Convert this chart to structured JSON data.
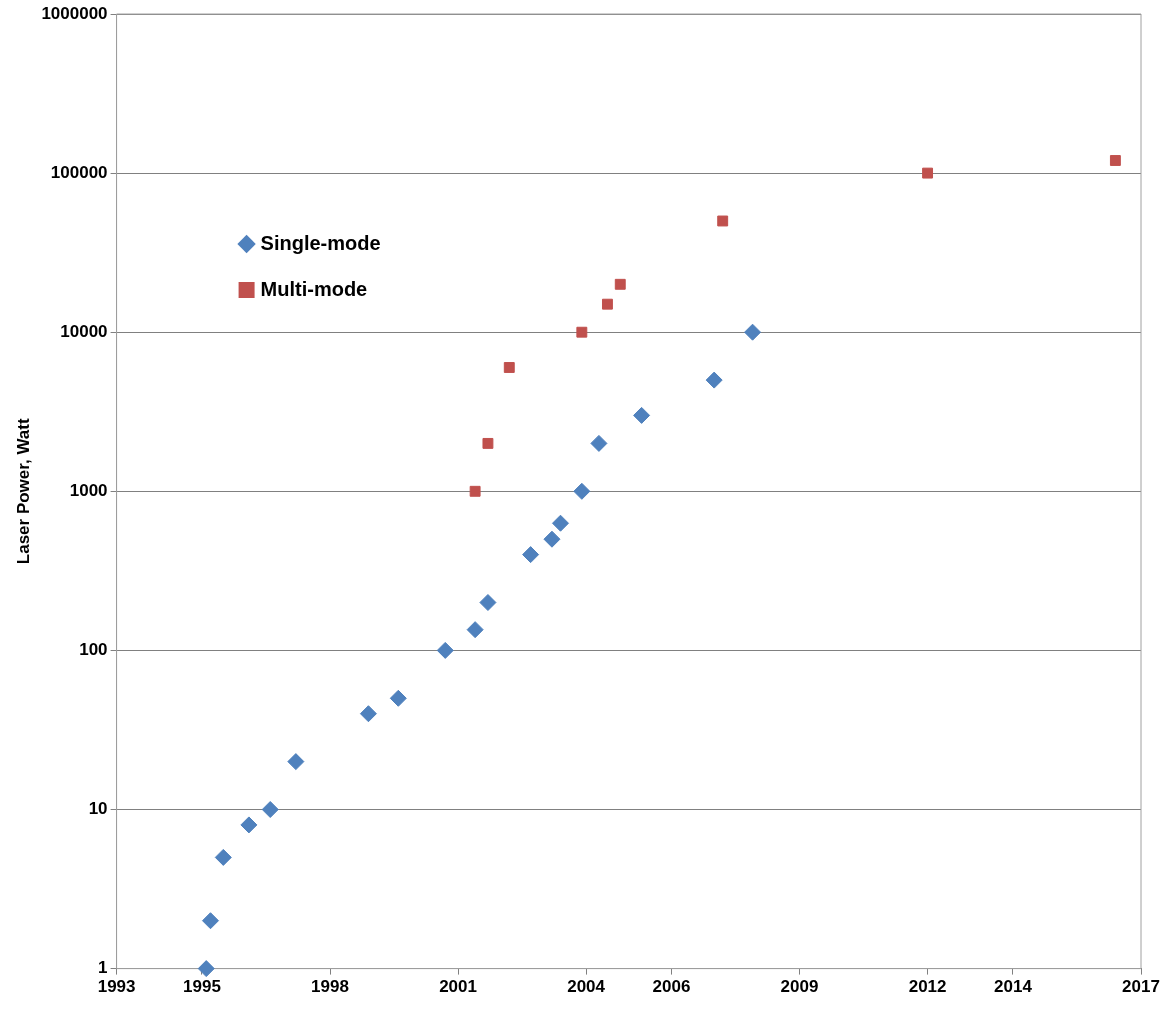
{
  "chart_data": {
    "type": "scatter",
    "ylabel": "Laser Power, Watt",
    "log": "y",
    "grid": "y",
    "legend": "top left",
    "xlim": [
      1993,
      2017
    ],
    "xticks": [
      1993,
      1995,
      1998,
      2001,
      2004,
      2006,
      2009,
      2012,
      2014,
      2017
    ],
    "ylim": [
      1,
      1000000
    ],
    "yticks": [
      1,
      10,
      100,
      1000,
      10000,
      100000,
      1000000
    ],
    "series": [
      {
        "name": "Single-mode",
        "color": "#4f81bd",
        "marker": "diamond",
        "x": [
          1995.1,
          1995.2,
          1995.5,
          1996.1,
          1996.6,
          1997.2,
          1998.9,
          1999.6,
          2000.7,
          2001.4,
          2001.7,
          2002.7,
          2003.2,
          2003.4,
          2003.9,
          2004.3,
          2005.3,
          2007.0,
          2007.9
        ],
        "values": [
          1,
          2,
          5,
          8,
          10,
          20,
          40,
          50,
          100,
          135,
          200,
          400,
          500,
          630,
          1000,
          2000,
          3000,
          5000,
          10000
        ]
      },
      {
        "name": "Multi-mode",
        "color": "#c0504d",
        "marker": "square",
        "x": [
          2001.4,
          2001.7,
          2002.2,
          2003.9,
          2004.5,
          2004.8,
          2007.2,
          2012.0,
          2016.4
        ],
        "values": [
          1000,
          2000,
          6000,
          10000,
          15000,
          20000,
          50000,
          100000,
          120000
        ]
      }
    ]
  }
}
